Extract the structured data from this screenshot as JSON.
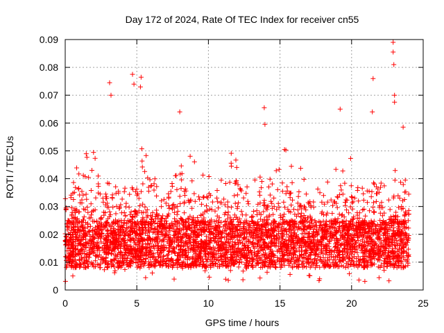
{
  "chart_data": {
    "type": "scatter",
    "title": "Day 172 of 2024, Rate Of TEC Index for receiver cn55",
    "xlabel": "GPS time / hours",
    "ylabel": "ROTI / TECUs",
    "xlim": [
      0,
      25
    ],
    "ylim": [
      0,
      0.09
    ],
    "xticks": [
      "0",
      "5",
      "10",
      "15",
      "20",
      "25"
    ],
    "yticks": [
      "0",
      "0.01",
      "0.02",
      "0.03",
      "0.04",
      "0.05",
      "0.06",
      "0.07",
      "0.08",
      "0.09"
    ],
    "grid": true,
    "marker": "+",
    "color": "#ff0000",
    "x_data_range": [
      0,
      24
    ],
    "typical_band": [
      0.008,
      0.025
    ],
    "series": [
      {
        "name": "ROTI",
        "notable_points": [
          {
            "x": 3.1,
            "y": 0.0745
          },
          {
            "x": 3.2,
            "y": 0.07
          },
          {
            "x": 4.7,
            "y": 0.0775
          },
          {
            "x": 4.8,
            "y": 0.074
          },
          {
            "x": 5.3,
            "y": 0.0765
          },
          {
            "x": 5.25,
            "y": 0.073
          },
          {
            "x": 8.0,
            "y": 0.064
          },
          {
            "x": 13.9,
            "y": 0.0655
          },
          {
            "x": 13.95,
            "y": 0.0595
          },
          {
            "x": 19.2,
            "y": 0.065
          },
          {
            "x": 21.5,
            "y": 0.076
          },
          {
            "x": 21.45,
            "y": 0.064
          },
          {
            "x": 22.9,
            "y": 0.089
          },
          {
            "x": 22.9,
            "y": 0.0855
          },
          {
            "x": 22.95,
            "y": 0.081
          },
          {
            "x": 23.0,
            "y": 0.07
          },
          {
            "x": 23.0,
            "y": 0.0675
          },
          {
            "x": 23.6,
            "y": 0.0585
          }
        ]
      }
    ]
  }
}
